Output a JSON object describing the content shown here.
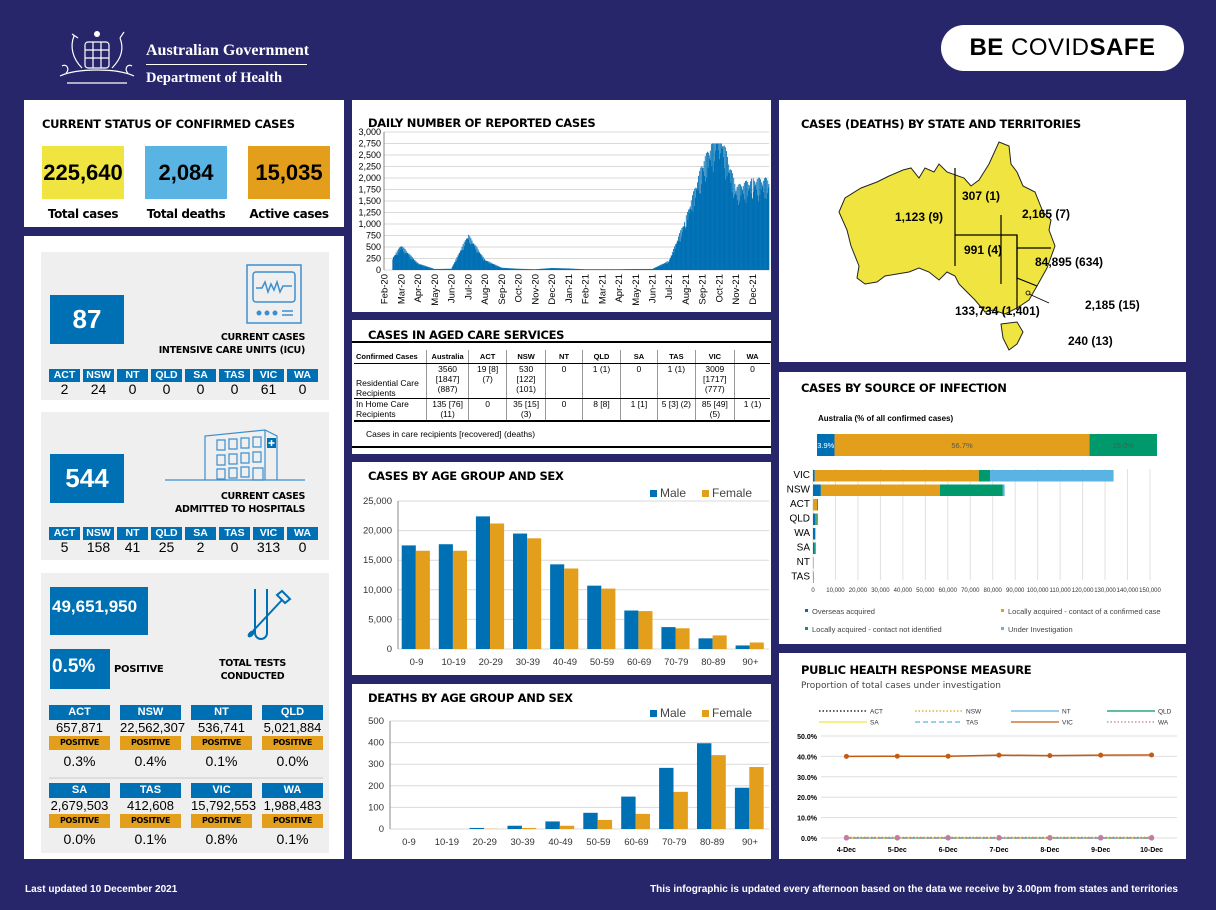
{
  "header": {
    "gov_name": "Australian Government",
    "department": "Department of Health",
    "badge": {
      "part1": "BE",
      "part2": " COVID",
      "part3": "SAFE"
    }
  },
  "current_status": {
    "title": "CURRENT STATUS OF CONFIRMED CASES",
    "items": [
      {
        "value": "225,640",
        "label": "Total cases",
        "color": "#f0e540"
      },
      {
        "value": "2,084",
        "label": "Total deaths",
        "color": "#5ab4e3"
      },
      {
        "value": "15,035",
        "label": "Active cases",
        "color": "#e39f1b"
      }
    ]
  },
  "icu": {
    "value": "87",
    "caption_line1": "CURRENT CASES",
    "caption_line2": "INTENSIVE CARE UNITS (ICU)",
    "states": [
      {
        "state": "ACT",
        "value": "2"
      },
      {
        "state": "NSW",
        "value": "24"
      },
      {
        "state": "NT",
        "value": "0"
      },
      {
        "state": "QLD",
        "value": "0"
      },
      {
        "state": "SA",
        "value": "0"
      },
      {
        "state": "TAS",
        "value": "0"
      },
      {
        "state": "VIC",
        "value": "61"
      },
      {
        "state": "WA",
        "value": "0"
      }
    ]
  },
  "hospital": {
    "value": "544",
    "caption_line1": "CURRENT CASES",
    "caption_line2": "ADMITTED TO HOSPITALS",
    "states": [
      {
        "state": "ACT",
        "value": "5"
      },
      {
        "state": "NSW",
        "value": "158"
      },
      {
        "state": "NT",
        "value": "41"
      },
      {
        "state": "QLD",
        "value": "25"
      },
      {
        "state": "SA",
        "value": "2"
      },
      {
        "state": "TAS",
        "value": "0"
      },
      {
        "state": "VIC",
        "value": "313"
      },
      {
        "state": "WA",
        "value": "0"
      }
    ]
  },
  "tests": {
    "total": "49,651,950",
    "positive_pct": "0.5%",
    "positive_label": "POSITIVE",
    "caption_line1": "TOTAL TESTS",
    "caption_line2": "CONDUCTED",
    "states": [
      {
        "state": "ACT",
        "tests": "657,871",
        "positive_label": "POSITIVE",
        "positive": "0.3%"
      },
      {
        "state": "NSW",
        "tests": "22,562,307",
        "positive_label": "POSITIVE",
        "positive": "0.4%"
      },
      {
        "state": "NT",
        "tests": "536,741",
        "positive_label": "POSITIVE",
        "positive": "0.1%"
      },
      {
        "state": "QLD",
        "tests": "5,021,884",
        "positive_label": "POSITIVE",
        "positive": "0.0%"
      },
      {
        "state": "SA",
        "tests": "2,679,503",
        "positive_label": "POSITIVE",
        "positive": "0.0%"
      },
      {
        "state": "TAS",
        "tests": "412,608",
        "positive_label": "POSITIVE",
        "positive": "0.1%"
      },
      {
        "state": "VIC",
        "tests": "15,792,553",
        "positive_label": "POSITIVE",
        "positive": "0.8%"
      },
      {
        "state": "WA",
        "tests": "1,988,483",
        "positive_label": "POSITIVE",
        "positive": "0.1%"
      }
    ]
  },
  "aged_care": {
    "title": "CASES IN AGED CARE SERVICES",
    "headers": [
      "Confirmed Cases",
      "Australia",
      "ACT",
      "NSW",
      "NT",
      "QLD",
      "SA",
      "TAS",
      "VIC",
      "WA"
    ],
    "rows": [
      [
        "Residential Care Recipients",
        "3560 [1847] (887)",
        "19 [8] (7)",
        "530 [122] (101)",
        "0",
        "1 (1)",
        "0",
        "1 (1)",
        "3009 [1717] (777)",
        "0"
      ],
      [
        "In Home Care Recipients",
        "135 [76] (11)",
        "0",
        "35 [15] (3)",
        "0",
        "8 [8]",
        "1 [1]",
        "5 [3] (2)",
        "85 [49] (5)",
        "1 (1)"
      ]
    ],
    "note": "Cases in care recipients [recovered] (deaths)"
  },
  "map": {
    "title": "CASES (DEATHS) BY STATE AND TERRITORIES",
    "fill": "#f0e540",
    "labels": [
      {
        "state": "WA",
        "text": "1,123 (9)"
      },
      {
        "state": "NT",
        "text": "307 (1)"
      },
      {
        "state": "QLD",
        "text": "2,165 (7)"
      },
      {
        "state": "SA",
        "text": "991 (4)"
      },
      {
        "state": "NSW",
        "text": "84,895 (634)"
      },
      {
        "state": "ACT",
        "text": "2,185 (15)"
      },
      {
        "state": "VIC",
        "text": "133,734 (1,401)"
      },
      {
        "state": "TAS",
        "text": "240 (13)"
      }
    ]
  },
  "footer": {
    "left": "Last updated 10 December 2021",
    "right": "This infographic is updated every afternoon based on the data we receive by 3.00pm from states and territories"
  },
  "chart_data": [
    {
      "id": "daily",
      "type": "bar",
      "title": "DAILY NUMBER OF REPORTED CASES",
      "ylim": [
        0,
        3000
      ],
      "yticks": [
        "0",
        "250",
        "500",
        "750",
        "1,000",
        "1,250",
        "1,500",
        "1,750",
        "2,000",
        "2,250",
        "2,500",
        "2,750",
        "3,000"
      ],
      "categories": [
        "Feb-20",
        "Mar-20",
        "Apr-20",
        "May-20",
        "Jun-20",
        "Jul-20",
        "Aug-20",
        "Sep-20",
        "Oct-20",
        "Nov-20",
        "Dec-20",
        "Jan-21",
        "Feb-21",
        "Mar-21",
        "Apr-21",
        "May-21",
        "Jun-21",
        "Jul-21",
        "Aug-21",
        "Sep-21",
        "Oct-21",
        "Nov-21",
        "Dec-21"
      ],
      "series_monthly_peak_approx": [
        5,
        480,
        130,
        20,
        25,
        690,
        200,
        45,
        25,
        15,
        40,
        30,
        15,
        15,
        15,
        20,
        20,
        180,
        1000,
        2050,
        2750,
        1600,
        1750
      ],
      "color": "#0070b5"
    },
    {
      "id": "cases_age",
      "type": "bar",
      "title": "CASES BY AGE GROUP AND SEX",
      "categories": [
        "0-9",
        "10-19",
        "20-29",
        "30-39",
        "40-49",
        "50-59",
        "60-69",
        "70-79",
        "80-89",
        "90+"
      ],
      "series": [
        {
          "name": "Male",
          "color": "#0070b5",
          "values": [
            17500,
            17700,
            22400,
            19500,
            14300,
            10700,
            6500,
            3700,
            1800,
            600
          ]
        },
        {
          "name": "Female",
          "color": "#e39f1b",
          "values": [
            16600,
            16600,
            21200,
            18700,
            13600,
            10200,
            6400,
            3500,
            2300,
            1100
          ]
        }
      ],
      "ylim": [
        0,
        25000
      ],
      "yticks": [
        "0",
        "5,000",
        "10,000",
        "15,000",
        "20,000",
        "25,000"
      ],
      "legend": "top-right"
    },
    {
      "id": "deaths_age",
      "type": "bar",
      "title": "DEATHS BY AGE GROUP AND SEX",
      "categories": [
        "0-9",
        "10-19",
        "20-29",
        "30-39",
        "40-49",
        "50-59",
        "60-69",
        "70-79",
        "80-89",
        "90+"
      ],
      "series": [
        {
          "name": "Male",
          "color": "#0070b5",
          "values": [
            0,
            0,
            5,
            15,
            35,
            75,
            150,
            283,
            397,
            191
          ]
        },
        {
          "name": "Female",
          "color": "#e39f1b",
          "values": [
            0,
            0,
            1,
            5,
            15,
            42,
            70,
            172,
            342,
            287
          ]
        }
      ],
      "ylim": [
        0,
        500
      ],
      "yticks": [
        "0",
        "100",
        "200",
        "300",
        "400",
        "500"
      ],
      "legend": "top-right"
    },
    {
      "id": "source",
      "type": "bar",
      "orientation": "horizontal-stacked",
      "title": "CASES BY SOURCE OF INFECTION",
      "subtitle": "Australia (% of all confirmed cases)",
      "australia_pct": [
        {
          "name": "Overseas acquired",
          "value": 3.9,
          "label": "3.9%"
        },
        {
          "name": "Locally acquired - contact of a confirmed case",
          "value": 56.7,
          "label": "56.7%"
        },
        {
          "name": "Locally acquired - contact not identified",
          "value": 15.0,
          "label": "15.0%"
        }
      ],
      "categories": [
        "VIC",
        "NSW",
        "ACT",
        "QLD",
        "WA",
        "SA",
        "NT",
        "TAS"
      ],
      "series": [
        {
          "name": "Overseas acquired",
          "color": "#0070b5",
          "values": [
            800,
            3500,
            100,
            1100,
            1000,
            600,
            100,
            100
          ]
        },
        {
          "name": "Locally acquired - contact of a confirmed case",
          "color": "#e39f1b",
          "values": [
            73000,
            53000,
            1700,
            400,
            0,
            0,
            0,
            0
          ]
        },
        {
          "name": "Locally acquired - contact not identified",
          "color": "#00996b",
          "values": [
            5000,
            28000,
            400,
            600,
            100,
            600,
            0,
            200
          ]
        },
        {
          "name": "Under Investigation",
          "color": "#5ab4e3",
          "values": [
            55000,
            800,
            0,
            0,
            0,
            0,
            200,
            0
          ]
        }
      ],
      "xlim": [
        0,
        150000
      ],
      "xticks": [
        "0",
        "10,000",
        "20,000",
        "30,000",
        "40,000",
        "50,000",
        "60,000",
        "70,000",
        "80,000",
        "90,000",
        "100,000",
        "110,000",
        "120,000",
        "130,000",
        "140,000",
        "150,000"
      ],
      "legend": "bottom"
    },
    {
      "id": "phrm",
      "type": "line",
      "title": "PUBLIC HEALTH RESPONSE MEASURE",
      "subtitle": "Proportion of total cases under investigation",
      "x": [
        "4-Dec",
        "5-Dec",
        "6-Dec",
        "7-Dec",
        "8-Dec",
        "9-Dec",
        "10-Dec"
      ],
      "ylim": [
        0,
        50
      ],
      "yticks": [
        "0.0%",
        "10.0%",
        "20.0%",
        "30.0%",
        "40.0%",
        "50.0%"
      ],
      "series": [
        {
          "name": "ACT",
          "color": "#000000",
          "dash": "dot",
          "values": [
            0,
            0,
            0,
            0,
            0,
            0,
            0
          ]
        },
        {
          "name": "NSW",
          "color": "#e39f1b",
          "dash": "dot",
          "values": [
            0.3,
            0.3,
            0.3,
            0.3,
            0.3,
            0.3,
            0.3
          ]
        },
        {
          "name": "NT",
          "color": "#5ab4e3",
          "dash": "solid",
          "values": [
            0,
            0,
            0,
            0,
            0,
            0,
            0
          ]
        },
        {
          "name": "QLD",
          "color": "#00996b",
          "dash": "solid",
          "values": [
            0,
            0,
            0,
            0,
            0,
            0,
            0
          ]
        },
        {
          "name": "SA",
          "color": "#f0e540",
          "dash": "solid",
          "values": [
            0,
            0,
            0,
            0,
            0,
            0,
            0
          ]
        },
        {
          "name": "TAS",
          "color": "#5ab4e3",
          "dash": "dash",
          "values": [
            0,
            0,
            0,
            0,
            0,
            0,
            0
          ]
        },
        {
          "name": "VIC",
          "color": "#c55a11",
          "dash": "solid",
          "values": [
            40.0,
            40.1,
            40.1,
            40.6,
            40.4,
            40.6,
            40.7
          ]
        },
        {
          "name": "WA",
          "color": "#c878a8",
          "dash": "dot",
          "values": [
            0,
            0,
            0,
            0,
            0,
            0,
            0
          ]
        }
      ],
      "legend": "top"
    }
  ]
}
